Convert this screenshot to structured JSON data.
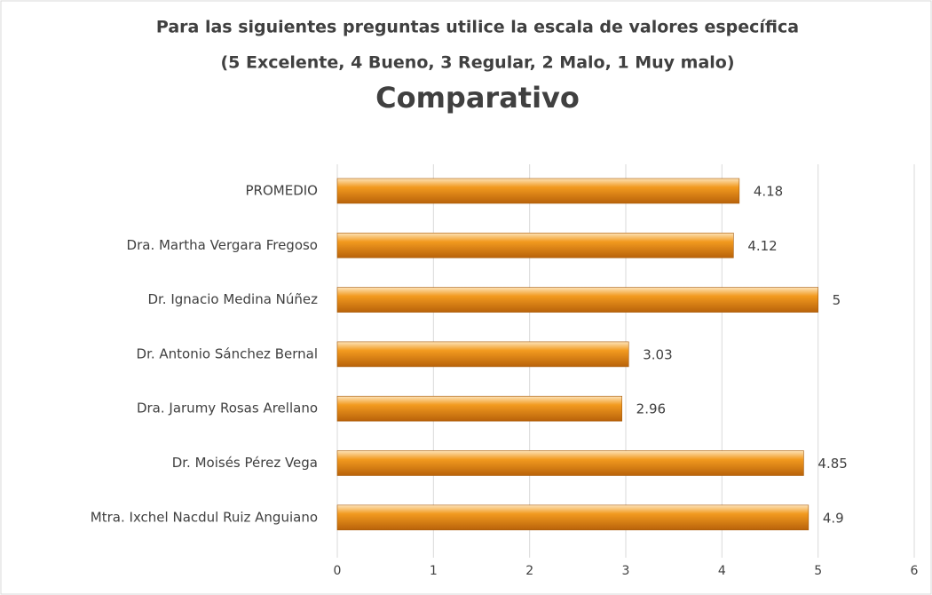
{
  "chart_data": {
    "type": "bar",
    "orientation": "horizontal",
    "heading": [
      "Para las siguientes preguntas utilice la escala de valores específica",
      "(5 Excelente, 4 Bueno, 3 Regular, 2 Malo, 1 Muy malo)"
    ],
    "title": "Comparativo",
    "categories": [
      "PROMEDIO",
      "Dra. Martha Vergara Fregoso",
      "Dr. Ignacio Medina Núñez",
      "Dr. Antonio Sánchez Bernal",
      "Dra. Jarumy Rosas Arellano",
      "Dr. Moisés Pérez Vega",
      "Mtra. Ixchel Nacdul Ruiz Anguiano"
    ],
    "values": [
      4.18,
      4.12,
      5,
      3.03,
      2.96,
      4.85,
      4.9
    ],
    "color": "#f29a1f",
    "xlim": [
      0,
      6
    ],
    "xticks": [
      0,
      1,
      2,
      3,
      4,
      5,
      6
    ],
    "grid": true
  }
}
